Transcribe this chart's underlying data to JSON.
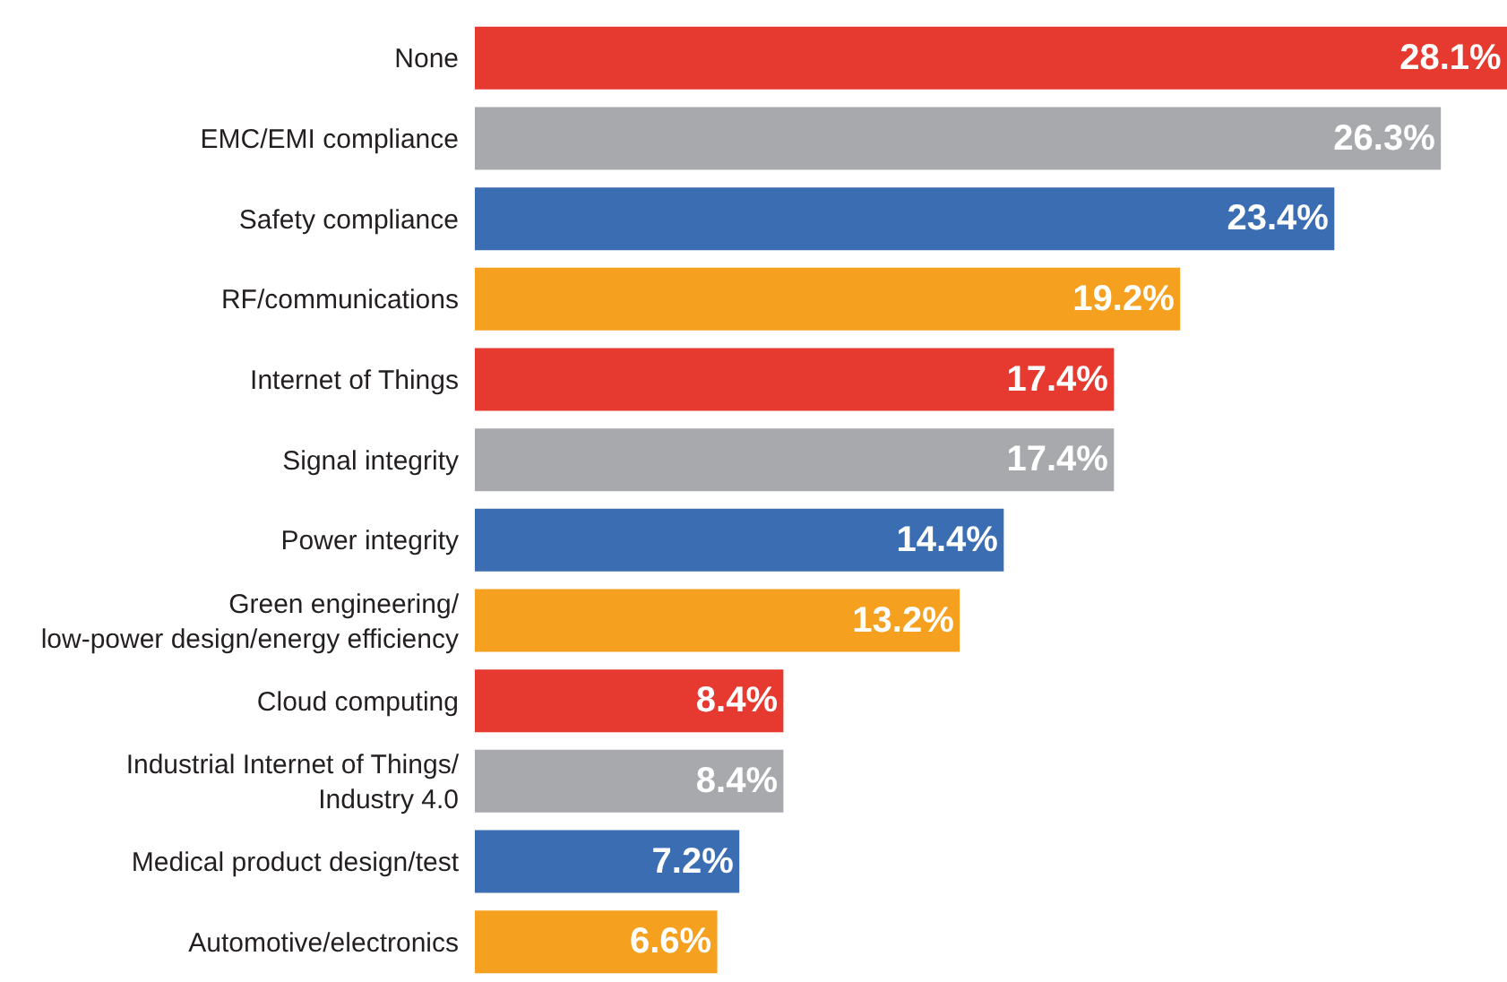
{
  "chart_data": {
    "type": "bar",
    "orientation": "horizontal",
    "value_labels": [
      "28.1%",
      "26.3%",
      "23.4%",
      "19.2%",
      "17.4%",
      "17.4%",
      "14.4%",
      "13.2%",
      "8.4%",
      "8.4%",
      "7.2%",
      "6.6%"
    ],
    "categories": [
      "None",
      "EMC/EMI compliance",
      "Safety compliance",
      "RF/communications",
      "Internet of Things",
      "Signal integrity",
      "Power integrity",
      "Green engineering/\nlow-power design/energy efficiency",
      "Cloud computing",
      "Industrial Internet of Things/\nIndustry 4.0",
      "Medical product design/test",
      "Automotive/electronics"
    ],
    "values": [
      28.1,
      26.3,
      23.4,
      19.2,
      17.4,
      17.4,
      14.4,
      13.2,
      8.4,
      8.4,
      7.2,
      6.6
    ],
    "colors": [
      "#e63a30",
      "#a7a9ac",
      "#3b6db3",
      "#f5a01e",
      "#e63a30",
      "#a7a9ac",
      "#3b6db3",
      "#f5a01e",
      "#e63a30",
      "#a7a9ac",
      "#3b6db3",
      "#f5a01e"
    ]
  }
}
